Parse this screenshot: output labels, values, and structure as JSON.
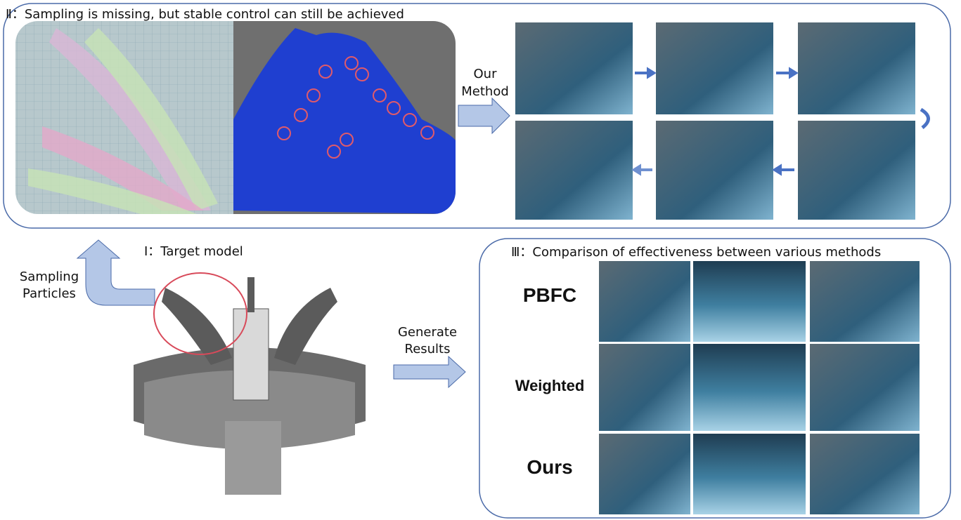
{
  "panel_2": {
    "title": "Ⅱ：Sampling is missing, but stable control can still be achieved",
    "arrow_label": [
      "Our",
      "Method"
    ]
  },
  "panel_1": {
    "title": "Ⅰ：Target model",
    "arrow_label": [
      "Sampling",
      "Particles"
    ],
    "output_label": [
      "Generate",
      "Results"
    ]
  },
  "panel_3": {
    "title": "Ⅲ：Comparison of effectiveness between various methods",
    "rows": [
      "PBFC",
      "Weighted",
      "Ours"
    ]
  }
}
